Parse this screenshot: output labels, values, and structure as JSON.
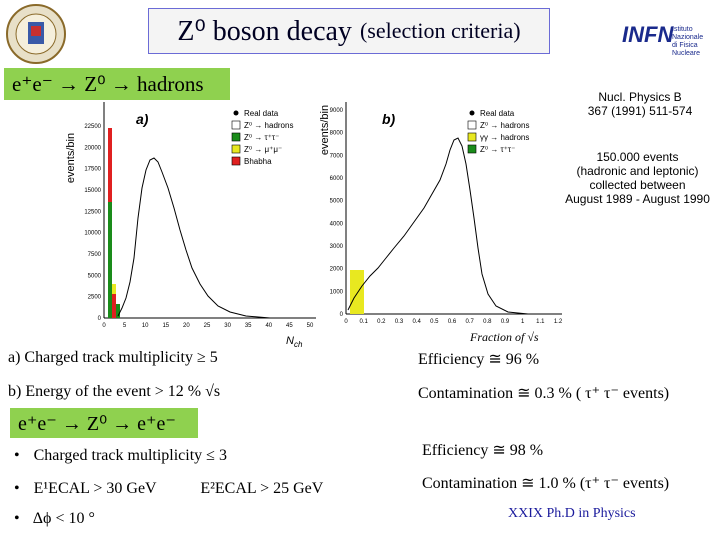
{
  "header": {
    "title_main": "Z⁰ boson decay",
    "title_small": "(selection criteria)",
    "logo_left_alt": "university-seal",
    "logo_right": "INFN",
    "logo_right_sub1": "Istituto Nazionale",
    "logo_right_sub2": "di Fisica Nucleare"
  },
  "banner1": "e⁺e⁻ → Z⁰ → hadrons",
  "banner2": "e⁺e⁻ → Z⁰ → e⁺e⁻",
  "reference": {
    "line1": "Nucl. Physics B",
    "line2": "367 (1991) 511-574",
    "events1": "150.000 events",
    "events2": "(hadronic and leptonic)",
    "events3": "collected between",
    "events4": "August 1989 -  August 1990"
  },
  "plot_a": {
    "ylabel": "events/bin",
    "panel": "a)",
    "xlabel": "N_ch",
    "yticks": [
      "0",
      "2500",
      "5000",
      "7500",
      "10000",
      "12500",
      "15000",
      "17500",
      "20000",
      "22500"
    ],
    "xticks": [
      "0",
      "5",
      "10",
      "15",
      "20",
      "25",
      "30",
      "35",
      "40",
      "45",
      "50"
    ],
    "legend": [
      "Real data",
      "Z⁰ → hadrons",
      "Z⁰ → τ⁺τ⁻",
      "Z⁰ → μ⁺μ⁻",
      "Bhabha"
    ]
  },
  "plot_b": {
    "ylabel": "events/bin",
    "panel": "b)",
    "xlabel": "Fraction of √s",
    "yticks": [
      "0",
      "1000",
      "2000",
      "3000",
      "4000",
      "5000",
      "6000",
      "7000",
      "8000",
      "9000"
    ],
    "xticks": [
      "0",
      "0.1",
      "0.2",
      "0.3",
      "0.4",
      "0.5",
      "0.6",
      "0.7",
      "0.8",
      "0.9",
      "1",
      "1.1",
      "1.2"
    ],
    "legend": [
      "Real data",
      "Z⁰ → hadrons",
      "γγ → hadrons",
      "Z⁰ → τ⁺τ⁻"
    ]
  },
  "criteria_hadrons": {
    "a": "a) Charged track multiplicity  ≥ 5",
    "b": "b)  Energy of the event  > 12 % √s",
    "eff": "Efficiency ≅ 96 %",
    "cont": "Contamination ≅ 0.3 %  ( τ⁺ τ⁻ events)"
  },
  "criteria_ee": {
    "b1": "Charged track multiplicity  ≤ 3",
    "b2a": "E¹ECAL  > 30 GeV",
    "b2b": "E²ECAL  > 25 GeV",
    "b3": "Δϕ < 10 °",
    "eff": "Efficiency ≅ 98 %",
    "cont": "Contamination ≅ 1.0 %  (τ⁺ τ⁻ events)"
  },
  "footer": "XXIX  Ph.D in Physics",
  "colors": {
    "banner": "#8fd14f",
    "hadrons": "#ffffff",
    "tau": "#1a8c1a",
    "mumu": "#e8e820",
    "bhabha": "#e02020",
    "footer": "#1a1a9c"
  }
}
